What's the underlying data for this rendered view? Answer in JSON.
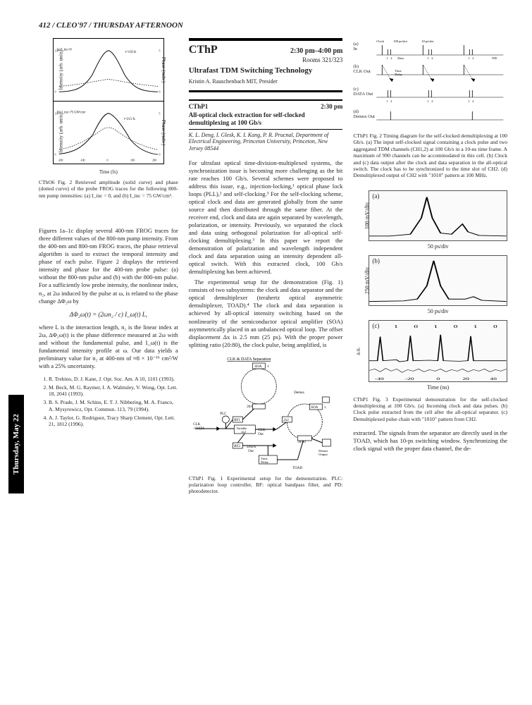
{
  "page_header": "412 / CLEO'97 / THURSDAY AFTERNOON",
  "side_tab": "Thursday, May 22",
  "fig_ctho6": {
    "panels": [
      {
        "tag": "(a) I_inc=0",
        "tau": "τ=150 fs",
        "legend": [
          "I_2ω(t)",
          "Φ_2ω(t)"
        ],
        "y_left": "Intensity (arb. units)",
        "y_right": "Phase (rads.)",
        "xlim": [
          -200,
          200
        ],
        "xtick": [
          -200,
          -100,
          0,
          100,
          200
        ],
        "ylim_l": [
          0,
          1
        ],
        "ytick_l": [
          0,
          0.2,
          0.4,
          0.6,
          0.8,
          1.0
        ],
        "ylim_r": [
          0,
          5
        ],
        "ytick_r": [
          0,
          1,
          2,
          3,
          4,
          5
        ],
        "intensity_curve": [
          [
            -200,
            0.02
          ],
          [
            -150,
            0.08
          ],
          [
            -100,
            0.35
          ],
          [
            -60,
            0.78
          ],
          [
            -30,
            0.97
          ],
          [
            0,
            1.0
          ],
          [
            30,
            0.95
          ],
          [
            60,
            0.75
          ],
          [
            100,
            0.35
          ],
          [
            150,
            0.08
          ],
          [
            200,
            0.02
          ]
        ],
        "phase_curve": [
          [
            -200,
            0.5
          ],
          [
            -150,
            0.6
          ],
          [
            -100,
            0.8
          ],
          [
            -50,
            1.2
          ],
          [
            0,
            1.5
          ],
          [
            50,
            1.2
          ],
          [
            100,
            0.8
          ],
          [
            150,
            0.6
          ],
          [
            200,
            0.5
          ]
        ],
        "line_colors": {
          "intensity": "#000000",
          "phase": "#000000"
        },
        "phase_dash": "3,2"
      },
      {
        "tag": "(b) I_inc=75 GW/cm²",
        "tau": "τ=215 fs",
        "legend": [
          "I_2ω(t)",
          "Φ_2ω(t)"
        ],
        "y_left": "Intensity (arb. units)",
        "y_right": "Phase (rads.)",
        "xlim": [
          -200,
          200
        ],
        "ylim_l": [
          0,
          1
        ],
        "ylim_r": [
          0,
          5
        ],
        "intensity_curve": [
          [
            -200,
            0.04
          ],
          [
            -150,
            0.12
          ],
          [
            -100,
            0.4
          ],
          [
            -50,
            0.8
          ],
          [
            -20,
            0.97
          ],
          [
            0,
            1.0
          ],
          [
            30,
            0.95
          ],
          [
            70,
            0.7
          ],
          [
            120,
            0.3
          ],
          [
            170,
            0.1
          ],
          [
            200,
            0.05
          ]
        ],
        "phase_curve": [
          [
            -200,
            0.6
          ],
          [
            -150,
            0.8
          ],
          [
            -100,
            1.3
          ],
          [
            -50,
            2.2
          ],
          [
            0,
            3.0
          ],
          [
            50,
            2.3
          ],
          [
            100,
            1.4
          ],
          [
            150,
            0.9
          ],
          [
            200,
            0.6
          ]
        ],
        "phase_dash": "3,2"
      }
    ],
    "x_label": "Time (fs)",
    "caption": "CThO6   Fig. 2   Retrieved amplitude (solid curve) and phase (dotted curve) of the probe FROG traces for the following 800-nm pump intensities: (a) I_inc = 0, and (b) I_inc = 75 GW/cm²."
  },
  "col1_text1": "Figures 1a–1c display several 400-nm FROG traces for three different values of the 800-nm pump intensity. From the 400-nm and 800-nm FROG traces, the phase retrieval algorithm is used to extract the temporal intensity and phase of each pulse. Figure 2 displays the retrieved intensity and phase for the 400-nm probe pulse: (a) without the 800-nm pulse and (b) with the 800-nm pulse. For a sufficiently low probe intensity, the nonlinear index, n₂, at 2ω induced by the pulse at ω, is related to the phase change ΔΦ₂ω by",
  "equation": "ΔΦ₂ω(t) = (2ωn₂ / c) I_ω(t) L,",
  "col1_text2": "where L is the interaction length, n₂ is the linear index at 2ω, ΔΦ₂ω(t) is the phase difference measured at 2ω with and without the fundamental pulse, and I_ω(t) is the fundamental intensity profile at ω. Our data yields a preliminary value for n₂ at 400-nm of ≈8 × 10⁻¹⁶ cm²/W with a 25% uncertainty.",
  "references": [
    "R. Trebino, D. J. Kane, J. Opt. Soc. Am. A 10, 1101 (1993).",
    "M. Beck, M. G. Raymer, I. A. Walmsley, V. Wong, Opt. Lett. 18, 2041 (1993).",
    "B. S. Prade, J. M. Schins, E. T. J. Nibbering, M. A. Franco, A. Mysyrowicz, Opt. Commun. 113, 79 (1994).",
    "A. J. Taylor, G. Rodriguez, Tracy Sharp Clement, Opt. Lett. 21, 1812 (1996)."
  ],
  "session": {
    "code": "CThP",
    "time": "2:30 pm–4:00 pm",
    "rooms": "Rooms 321/323",
    "title": "Ultrafast TDM Switching Technology",
    "presider": "Kristin A. Rauschenbach MIT, Presider"
  },
  "talk1": {
    "code": "CThP1",
    "time": "2:30 pm",
    "title": "All-optical clock extraction for self-clocked demultiplexing at 100 Gb/s",
    "authors": "K. L. Deng, I. Glesk, K. I. Kang, P. R. Prucnal, Department of Electrical Engineering, Princeton University, Princeton, New Jersey 08544"
  },
  "col2_text1": "For ultrafast optical time-division-multiplexed systems, the synchronization issue is becoming more challenging as the bit rate reaches 100 Gb/s. Several schemes were proposed to address this issue, e.g., injection-locking,¹ optical phase lock loops (PLL),² and self-clocking.³ For the self-clocking scheme, optical clock and data are generated globally from the same source and then distributed through the same fiber. At the receiver end, clock and data are again separated by wavelength, polarization, or intensity. Previously, we separated the clock and data using orthogonal polarization for all-optical self-clocking demultiplexing.³ In this paper we report the demonstration of polarization and wavelength independent clock and data separation using an intensity dependent all-optical switch. With this extracted clock, 100 Gb/s demultiplexing has been achieved.",
  "col2_text2": "The experimental setup for the demonstration (Fig. 1) consists of two subsystems: the clock and data separator and the optical demultiplexer (terahertz optical asymmetric demultiplexer, TOAD).⁴ The clock and data separation is achieved by all-optical intensity switching based on the nonlinearity of the semiconductor optical amplifier (SOA) asymmetrically placed in an unbalanced optical loop. The offset displacement Δx is 2.5 mm (25 ps). With the proper power splitting ratio (20:80), the clock pulse, being amplified, is",
  "fig1_caption": "CThP1   Fig. 1   Experimental setup for the demonstration. PLC: polarization loop controller, BF: optical bandpass filter, and PD: photodetector.",
  "fig1_labels": {
    "title": "CLK & DATA Separation",
    "clk_data": "CLK +DATA",
    "soa1": "SOA 1",
    "soa2": "SOA 2",
    "plc": "PLC",
    "bf1": "BF1",
    "bf2": "BF2",
    "splitter1": "20/80",
    "splitter2": "50/50",
    "var2x2": "Variable 2x2",
    "fixed2x2": "2x2",
    "demux": "Demux",
    "clk_out": "CLK Out",
    "data_out": "DATA Out",
    "demux_out": "Demux Output",
    "time_delay": "Time Delay",
    "toad": "TOAD"
  },
  "fig2_timing": {
    "rows": [
      {
        "tag": "(a)",
        "label": "In",
        "top_label": "Clock  100 ps/slot  10 ps/slot",
        "ticks": [
          "1",
          "2",
          "1",
          "2",
          "1",
          "2",
          "500"
        ],
        "sub": "Data"
      },
      {
        "tag": "(b)",
        "label": "CLK Out",
        "arrow": "Time Delay"
      },
      {
        "tag": "(c)",
        "label": "DATA Out"
      },
      {
        "tag": "(d)",
        "label": "Demux Out",
        "ticks": [
          "1",
          "2",
          "1",
          "2",
          "1",
          "2"
        ]
      }
    ],
    "caption": "CThP1   Fig. 2   Timing diagram for the self-clocked demultiplexing at 100 Gb/s. (a) The input self-clocked signal containing a clock pulse and two aggregated TDM channels (CH1,2) at 100 Gb/s in a 10-ns time frame. A maximum of 990 channels can be accommodated in this cell. (b) Clock and (c) data output after the clock and data separation in the all-optical switch. The clock has to be synchronized to the time slot of CH2. (d) Demultiplexed output of CH2 with \"1010\" pattern at 100 MHz."
  },
  "fig3_scope": {
    "panels": [
      {
        "tag": "(a)",
        "y": "100 mV/div",
        "x": "50 ps/div",
        "trace": [
          [
            0,
            5
          ],
          [
            15,
            5
          ],
          [
            20,
            6
          ],
          [
            30,
            8
          ],
          [
            38,
            35
          ],
          [
            42,
            70
          ],
          [
            46,
            35
          ],
          [
            52,
            10
          ],
          [
            60,
            8
          ],
          [
            68,
            25
          ],
          [
            72,
            12
          ],
          [
            80,
            6
          ],
          [
            100,
            5
          ]
        ]
      },
      {
        "tag": "(b)",
        "y": "250 mV/div",
        "x": "50 ps/div",
        "trace": [
          [
            0,
            4
          ],
          [
            25,
            5
          ],
          [
            35,
            8
          ],
          [
            42,
            30
          ],
          [
            47,
            72
          ],
          [
            52,
            30
          ],
          [
            58,
            8
          ],
          [
            70,
            8
          ],
          [
            76,
            12
          ],
          [
            82,
            6
          ],
          [
            100,
            4
          ]
        ]
      },
      {
        "tag": "(c)",
        "y": "a.u.",
        "x": "Time (ns)",
        "xticks": [
          "-40",
          "-20",
          "0",
          "20",
          "40"
        ],
        "bits": "1 0 1 0 1 0 1",
        "trace": [
          [
            0,
            10
          ],
          [
            6,
            10
          ],
          [
            8,
            60
          ],
          [
            10,
            10
          ],
          [
            20,
            12
          ],
          [
            22,
            8
          ],
          [
            28,
            10
          ],
          [
            30,
            62
          ],
          [
            32,
            10
          ],
          [
            44,
            11
          ],
          [
            50,
            10
          ],
          [
            52,
            64
          ],
          [
            54,
            10
          ],
          [
            66,
            9
          ],
          [
            72,
            10
          ],
          [
            74,
            61
          ],
          [
            76,
            10
          ],
          [
            88,
            10
          ],
          [
            100,
            10
          ]
        ]
      }
    ],
    "caption": "CThP1   Fig. 3   Experimental demonstration for the self-clocked demultiplexing at 100 Gb/s. (a) Incoming clock and data pulses. (b) Clock pulse extracted from the cell after the all-optical separator. (c) Demultiplexed pulse chain with \"1010\" pattern from CH2."
  },
  "col3_tail": "extracted. The signals from the separator are directly used in the TOAD, which has 10-ps switching window. Synchronizing the clock signal with the proper data channel, the de-",
  "colors": {
    "stroke": "#000000",
    "grid": "#cccccc",
    "bg": "#ffffff"
  }
}
